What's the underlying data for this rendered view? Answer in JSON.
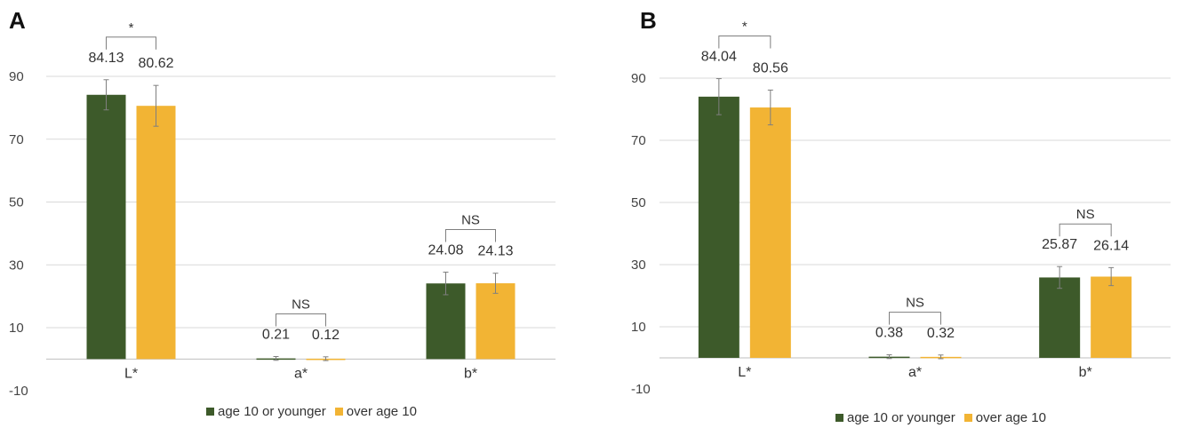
{
  "colors": {
    "series1": "#3d5a2a",
    "series2": "#f2b434",
    "grid": "#d9d9d9",
    "errorbar": "#7f7f7f",
    "bracket": "#7f7f7f"
  },
  "chart_data": [
    {
      "panel_label": "A",
      "type": "bar",
      "categories": [
        "L*",
        "a*",
        "b*"
      ],
      "ylim": [
        -10,
        100
      ],
      "yticks": [
        -10,
        10,
        30,
        50,
        70,
        90
      ],
      "grid": true,
      "legend_position": "bottom",
      "series": [
        {
          "name": "age 10 or younger",
          "values": [
            84.13,
            0.21,
            24.08
          ],
          "labels": [
            "84.13",
            "0.21",
            "24.08"
          ],
          "errors": [
            4.8,
            0.6,
            3.6
          ]
        },
        {
          "name": "over age 10",
          "values": [
            80.62,
            0.12,
            24.13
          ],
          "labels": [
            "80.62",
            "0.12",
            "24.13"
          ],
          "errors": [
            6.5,
            0.6,
            3.2
          ]
        }
      ],
      "significance": [
        "*",
        "NS",
        "NS"
      ]
    },
    {
      "panel_label": "B",
      "type": "bar",
      "categories": [
        "L*",
        "a*",
        "b*"
      ],
      "ylim": [
        -10,
        100
      ],
      "yticks": [
        -10,
        10,
        30,
        50,
        70,
        90
      ],
      "grid": true,
      "legend_position": "bottom",
      "series": [
        {
          "name": "age 10 or younger",
          "values": [
            84.04,
            0.38,
            25.87
          ],
          "labels": [
            "84.04",
            "0.38",
            "25.87"
          ],
          "errors": [
            5.8,
            0.6,
            3.5
          ]
        },
        {
          "name": "over age 10",
          "values": [
            80.56,
            0.32,
            26.14
          ],
          "labels": [
            "80.56",
            "0.32",
            "26.14"
          ],
          "errors": [
            5.6,
            0.6,
            2.9
          ]
        }
      ],
      "significance": [
        "*",
        "NS",
        "NS"
      ]
    }
  ]
}
